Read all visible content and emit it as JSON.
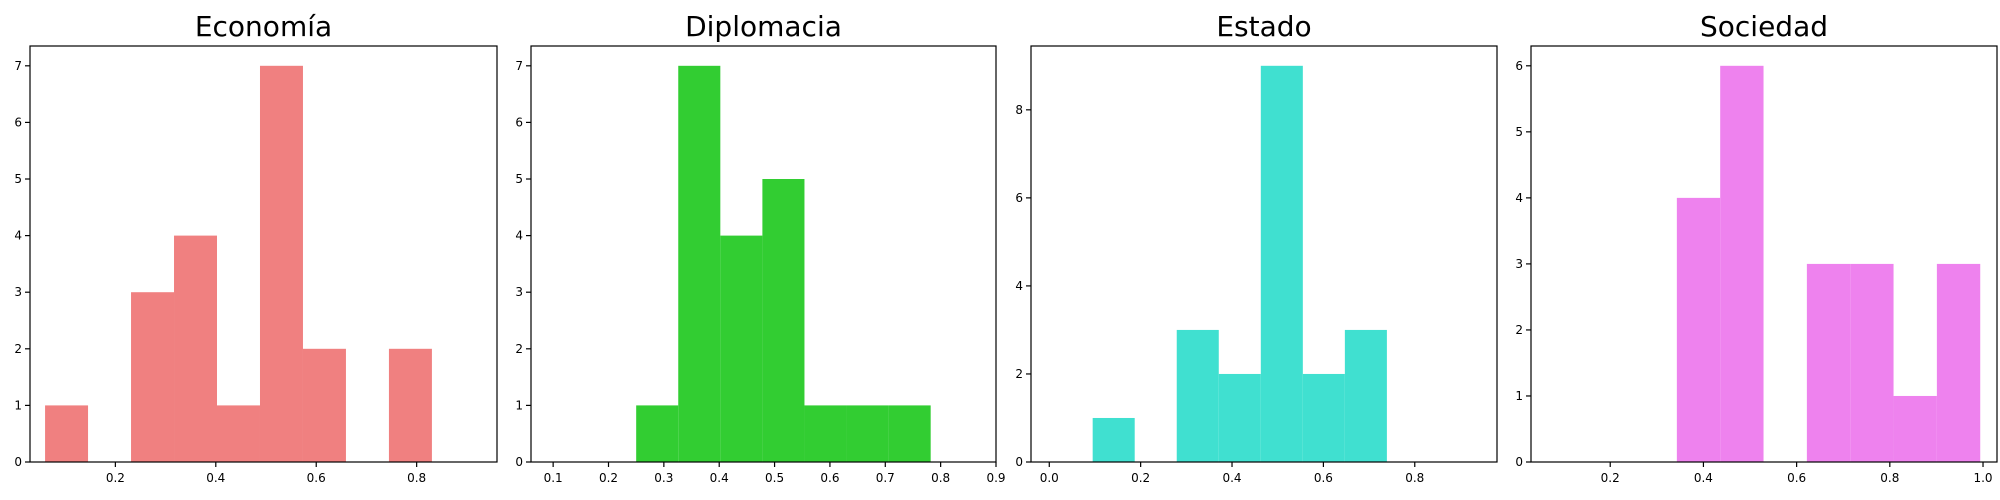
{
  "chart_data": [
    {
      "type": "bar",
      "title": "Economía",
      "color": "#F08080",
      "xlim": [
        0.03,
        0.96
      ],
      "ylim": [
        0,
        7.35
      ],
      "xticks": [
        0.2,
        0.4,
        0.6,
        0.8
      ],
      "yticks": [
        0,
        1,
        2,
        3,
        4,
        5,
        6,
        7
      ],
      "bins": [
        {
          "x0": 0.06,
          "x1": 0.1456,
          "value": 1
        },
        {
          "x0": 0.1456,
          "x1": 0.2312,
          "value": 0
        },
        {
          "x0": 0.2312,
          "x1": 0.3168,
          "value": 3
        },
        {
          "x0": 0.3168,
          "x1": 0.4024,
          "value": 4
        },
        {
          "x0": 0.4024,
          "x1": 0.488,
          "value": 1
        },
        {
          "x0": 0.488,
          "x1": 0.5736,
          "value": 7
        },
        {
          "x0": 0.5736,
          "x1": 0.6592,
          "value": 2
        },
        {
          "x0": 0.6592,
          "x1": 0.7448,
          "value": 0
        },
        {
          "x0": 0.7448,
          "x1": 0.8304,
          "value": 2
        }
      ]
    },
    {
      "type": "bar",
      "title": "Diplomacia",
      "color": "#32CD32",
      "xlim": [
        0.06,
        0.9
      ],
      "ylim": [
        0,
        7.35
      ],
      "xticks": [
        0.1,
        0.2,
        0.3,
        0.4,
        0.5,
        0.6,
        0.7,
        0.8,
        0.9
      ],
      "yticks": [
        0,
        1,
        2,
        3,
        4,
        5,
        6,
        7
      ],
      "bins": [
        {
          "x0": 0.25,
          "x1": 0.326,
          "value": 1
        },
        {
          "x0": 0.326,
          "x1": 0.402,
          "value": 7
        },
        {
          "x0": 0.402,
          "x1": 0.478,
          "value": 4
        },
        {
          "x0": 0.478,
          "x1": 0.554,
          "value": 5
        },
        {
          "x0": 0.554,
          "x1": 0.63,
          "value": 1
        },
        {
          "x0": 0.63,
          "x1": 0.706,
          "value": 1
        },
        {
          "x0": 0.706,
          "x1": 0.782,
          "value": 1
        }
      ]
    },
    {
      "type": "bar",
      "title": "Estado",
      "color": "#40E0D0",
      "xlim": [
        -0.04,
        0.98
      ],
      "ylim": [
        0,
        9.45
      ],
      "xticks": [
        0.0,
        0.2,
        0.4,
        0.6,
        0.8
      ],
      "yticks": [
        0,
        2,
        4,
        6,
        8
      ],
      "bins": [
        {
          "x0": 0.095,
          "x1": 0.187,
          "value": 1
        },
        {
          "x0": 0.187,
          "x1": 0.279,
          "value": 0
        },
        {
          "x0": 0.279,
          "x1": 0.371,
          "value": 3
        },
        {
          "x0": 0.371,
          "x1": 0.463,
          "value": 2
        },
        {
          "x0": 0.463,
          "x1": 0.555,
          "value": 9
        },
        {
          "x0": 0.555,
          "x1": 0.647,
          "value": 2
        },
        {
          "x0": 0.647,
          "x1": 0.739,
          "value": 3
        }
      ]
    },
    {
      "type": "bar",
      "title": "Sociedad",
      "color": "#EE82EE",
      "xlim": [
        0.03,
        1.03
      ],
      "ylim": [
        0,
        6.3
      ],
      "xticks": [
        0.2,
        0.4,
        0.6,
        0.8,
        1.0
      ],
      "yticks": [
        0,
        1,
        2,
        3,
        4,
        5,
        6
      ],
      "bins": [
        {
          "x0": 0.343,
          "x1": 0.436,
          "value": 4
        },
        {
          "x0": 0.436,
          "x1": 0.529,
          "value": 6
        },
        {
          "x0": 0.529,
          "x1": 0.622,
          "value": 0
        },
        {
          "x0": 0.622,
          "x1": 0.715,
          "value": 3
        },
        {
          "x0": 0.715,
          "x1": 0.808,
          "value": 3
        },
        {
          "x0": 0.808,
          "x1": 0.901,
          "value": 1
        },
        {
          "x0": 0.901,
          "x1": 0.994,
          "value": 3
        }
      ]
    }
  ]
}
